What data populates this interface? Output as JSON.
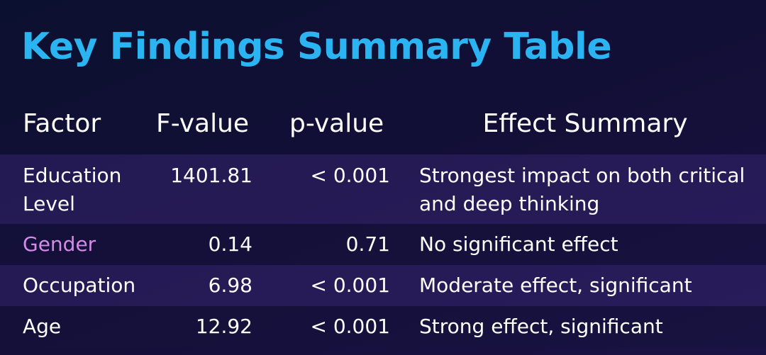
{
  "title": "Key Findings Summary Table",
  "columns": {
    "factor": "Factor",
    "f_value": "F-value",
    "p_value": "p-value",
    "effect": "Effect Summary"
  },
  "rows": [
    {
      "factor": "Education Level",
      "f_value": "1401.81",
      "p_value": "< 0.001",
      "effect": "Strongest impact on both critical and deep thinking"
    },
    {
      "factor": "Gender",
      "f_value": "0.14",
      "p_value": "0.71",
      "effect": "No significant effect"
    },
    {
      "factor": "Occupation",
      "f_value": "6.98",
      "p_value": "< 0.001",
      "effect": "Moderate effect, significant"
    },
    {
      "factor": "Age",
      "f_value": "12.92",
      "p_value": "< 0.001",
      "effect": "Strong effect, significant"
    }
  ],
  "colors": {
    "title": "#2bb4f2",
    "highlight_factor": "#d28ce6",
    "background": "#120f36"
  }
}
